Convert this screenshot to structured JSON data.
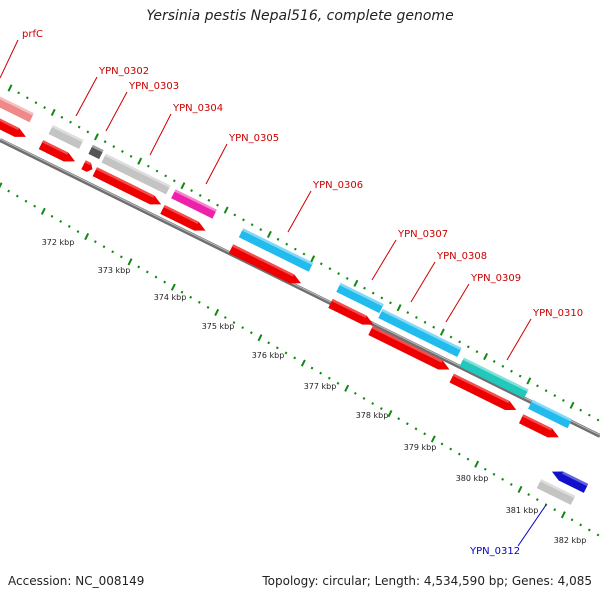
{
  "title": "Yersinia pestis Nepal516, complete genome",
  "footer": {
    "accession": "Accession: NC_008149",
    "summary": "Topology: circular; Length: 4,534,590 bp; Genes: 4,085"
  },
  "colors": {
    "cds_red": "#ee0000",
    "label_red": "#cc0000",
    "label_blue": "#0000cc",
    "backbone": "#777777",
    "ticks": "#118811",
    "gray": "#c4c4c4",
    "dark_gray": "#555555",
    "pink": "#f08a8a",
    "magenta": "#ee22aa",
    "cyan": "#22bbee",
    "teal": "#22c8bb",
    "blue": "#1111cc"
  },
  "map": {
    "kbp_labels": [
      "372 kbp",
      "373 kbp",
      "374 kbp",
      "375 kbp",
      "376 kbp",
      "377 kbp",
      "378 kbp",
      "379 kbp",
      "380 kbp",
      "381 kbp",
      "382 kbp"
    ],
    "genes": [
      {
        "name": "prfC",
        "color": "label_red"
      },
      {
        "name": "YPN_0302",
        "color": "label_red"
      },
      {
        "name": "YPN_0303",
        "color": "label_red"
      },
      {
        "name": "YPN_0304",
        "color": "label_red"
      },
      {
        "name": "YPN_0305",
        "color": "label_red"
      },
      {
        "name": "YPN_0306",
        "color": "label_red"
      },
      {
        "name": "YPN_0307",
        "color": "label_red"
      },
      {
        "name": "YPN_0308",
        "color": "label_red"
      },
      {
        "name": "YPN_0309",
        "color": "label_red"
      },
      {
        "name": "YPN_0310",
        "color": "label_red"
      },
      {
        "name": "YPN_0312",
        "color": "label_blue"
      }
    ]
  }
}
